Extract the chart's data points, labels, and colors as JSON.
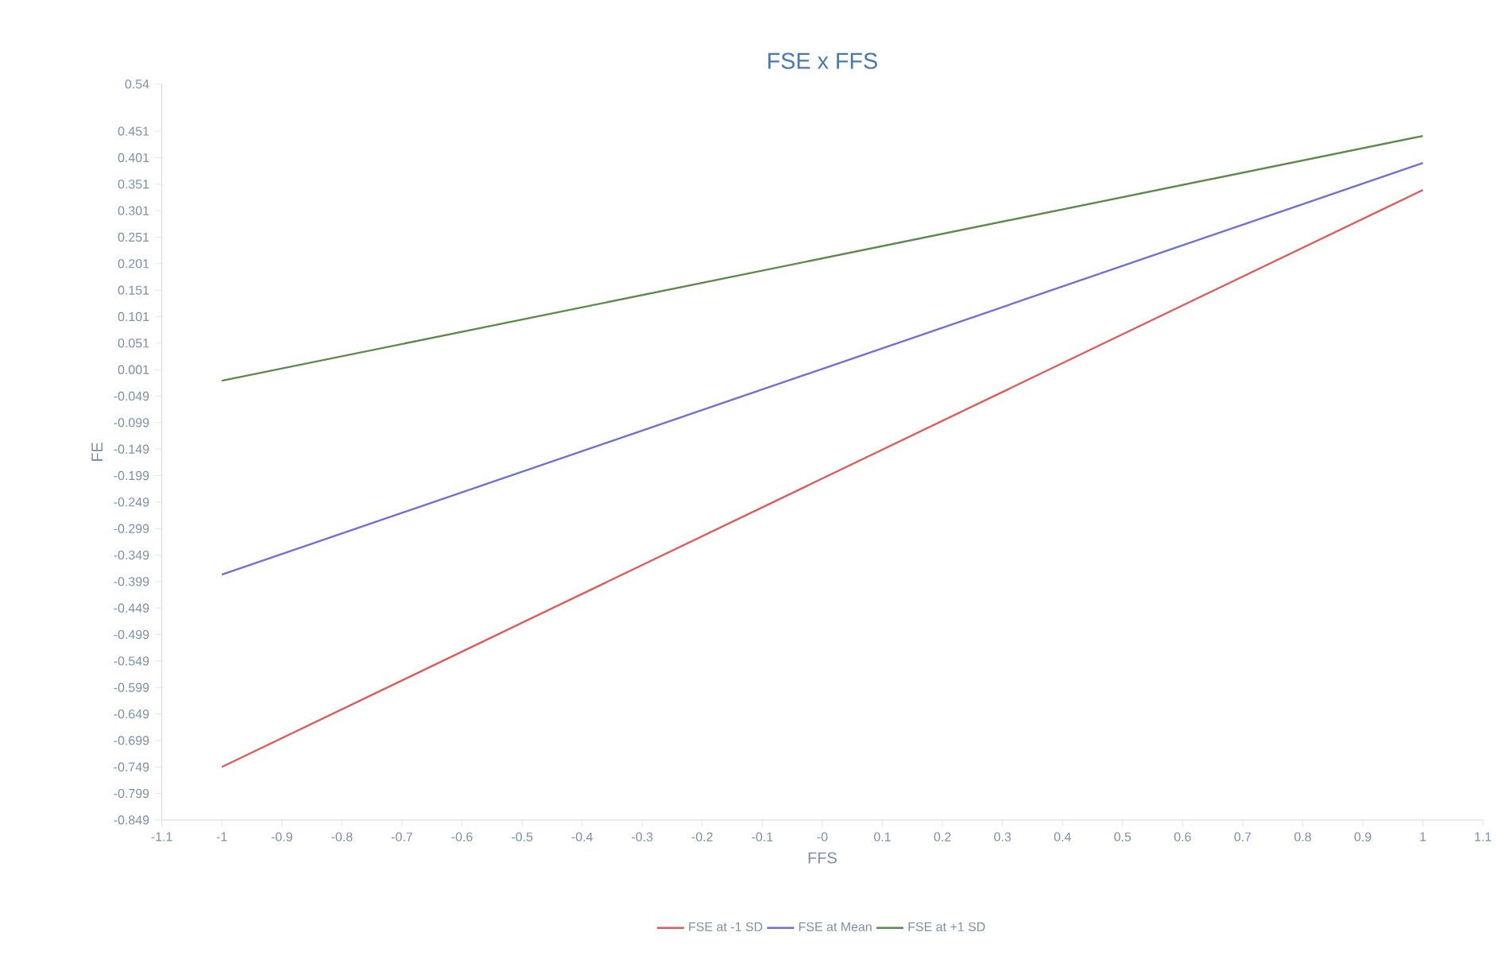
{
  "chart_data": {
    "type": "line",
    "title": "FSE x FFS",
    "xlabel": "FFS",
    "ylabel": "FE",
    "x": [
      -1,
      1
    ],
    "series": [
      {
        "name": "FSE at -1 SD",
        "color": "#e05a5a",
        "values": [
          -0.749,
          0.34
        ]
      },
      {
        "name": "FSE at Mean",
        "color": "#6f6fd6",
        "values": [
          -0.386,
          0.391
        ]
      },
      {
        "name": "FSE at +1 SD",
        "color": "#5b8a4b",
        "values": [
          -0.02,
          0.442
        ]
      }
    ],
    "xlim": [
      -1.1,
      1.1
    ],
    "xticks": [
      -1.1,
      -1,
      -0.9,
      -0.8,
      -0.7,
      -0.6,
      -0.5,
      -0.4,
      -0.3,
      -0.2,
      -0.1,
      {
        "value": 0,
        "label": "-0"
      },
      0.1,
      0.2,
      0.3,
      0.4,
      0.5,
      0.6,
      0.7,
      0.8,
      0.9,
      1,
      1.1
    ],
    "ylim": [
      -0.849,
      0.54
    ],
    "yticks": [
      0.54,
      0.451,
      0.401,
      0.351,
      0.301,
      0.251,
      0.201,
      0.151,
      0.101,
      0.051,
      0.001,
      -0.049,
      -0.099,
      -0.149,
      -0.199,
      -0.249,
      -0.299,
      -0.349,
      -0.399,
      -0.449,
      -0.499,
      -0.549,
      -0.599,
      -0.649,
      -0.699,
      -0.749,
      -0.799,
      -0.849
    ],
    "grid": false,
    "legend": "bottom"
  }
}
